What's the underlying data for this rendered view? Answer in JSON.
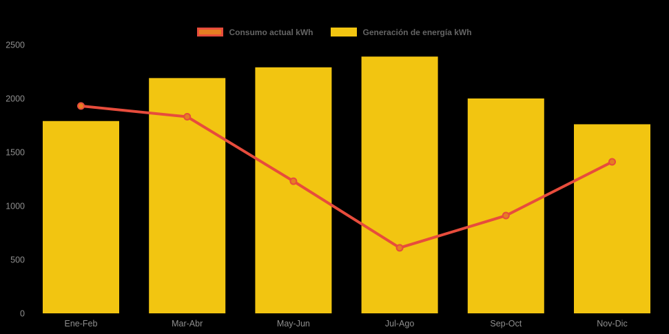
{
  "chart_data": {
    "type": "bar+line",
    "title": "",
    "xlabel": "",
    "ylabel": "",
    "categories": [
      "Ene-Feb",
      "Mar-Abr",
      "May-Jun",
      "Jul-Ago",
      "Sep-Oct",
      "Nov-Dic"
    ],
    "series": [
      {
        "name": "Consumo actual kWh",
        "type": "line",
        "values": [
          1930,
          1830,
          1230,
          610,
          910,
          1410
        ],
        "line_color": "#e74c3c",
        "point_fill": "#e67e22",
        "point_stroke": "#e74c3c"
      },
      {
        "name": "Generación de energía kWh",
        "type": "bar",
        "values": [
          1790,
          2190,
          2290,
          2390,
          2000,
          1760
        ],
        "color": "#f2c511"
      }
    ],
    "ylim": [
      0,
      2500
    ],
    "yticks": [
      0,
      500,
      1000,
      1500,
      2000,
      2500
    ],
    "grid": "off",
    "legend_position": "top",
    "background_color": "#000000",
    "axis_label_color": "#8f8f8f"
  }
}
